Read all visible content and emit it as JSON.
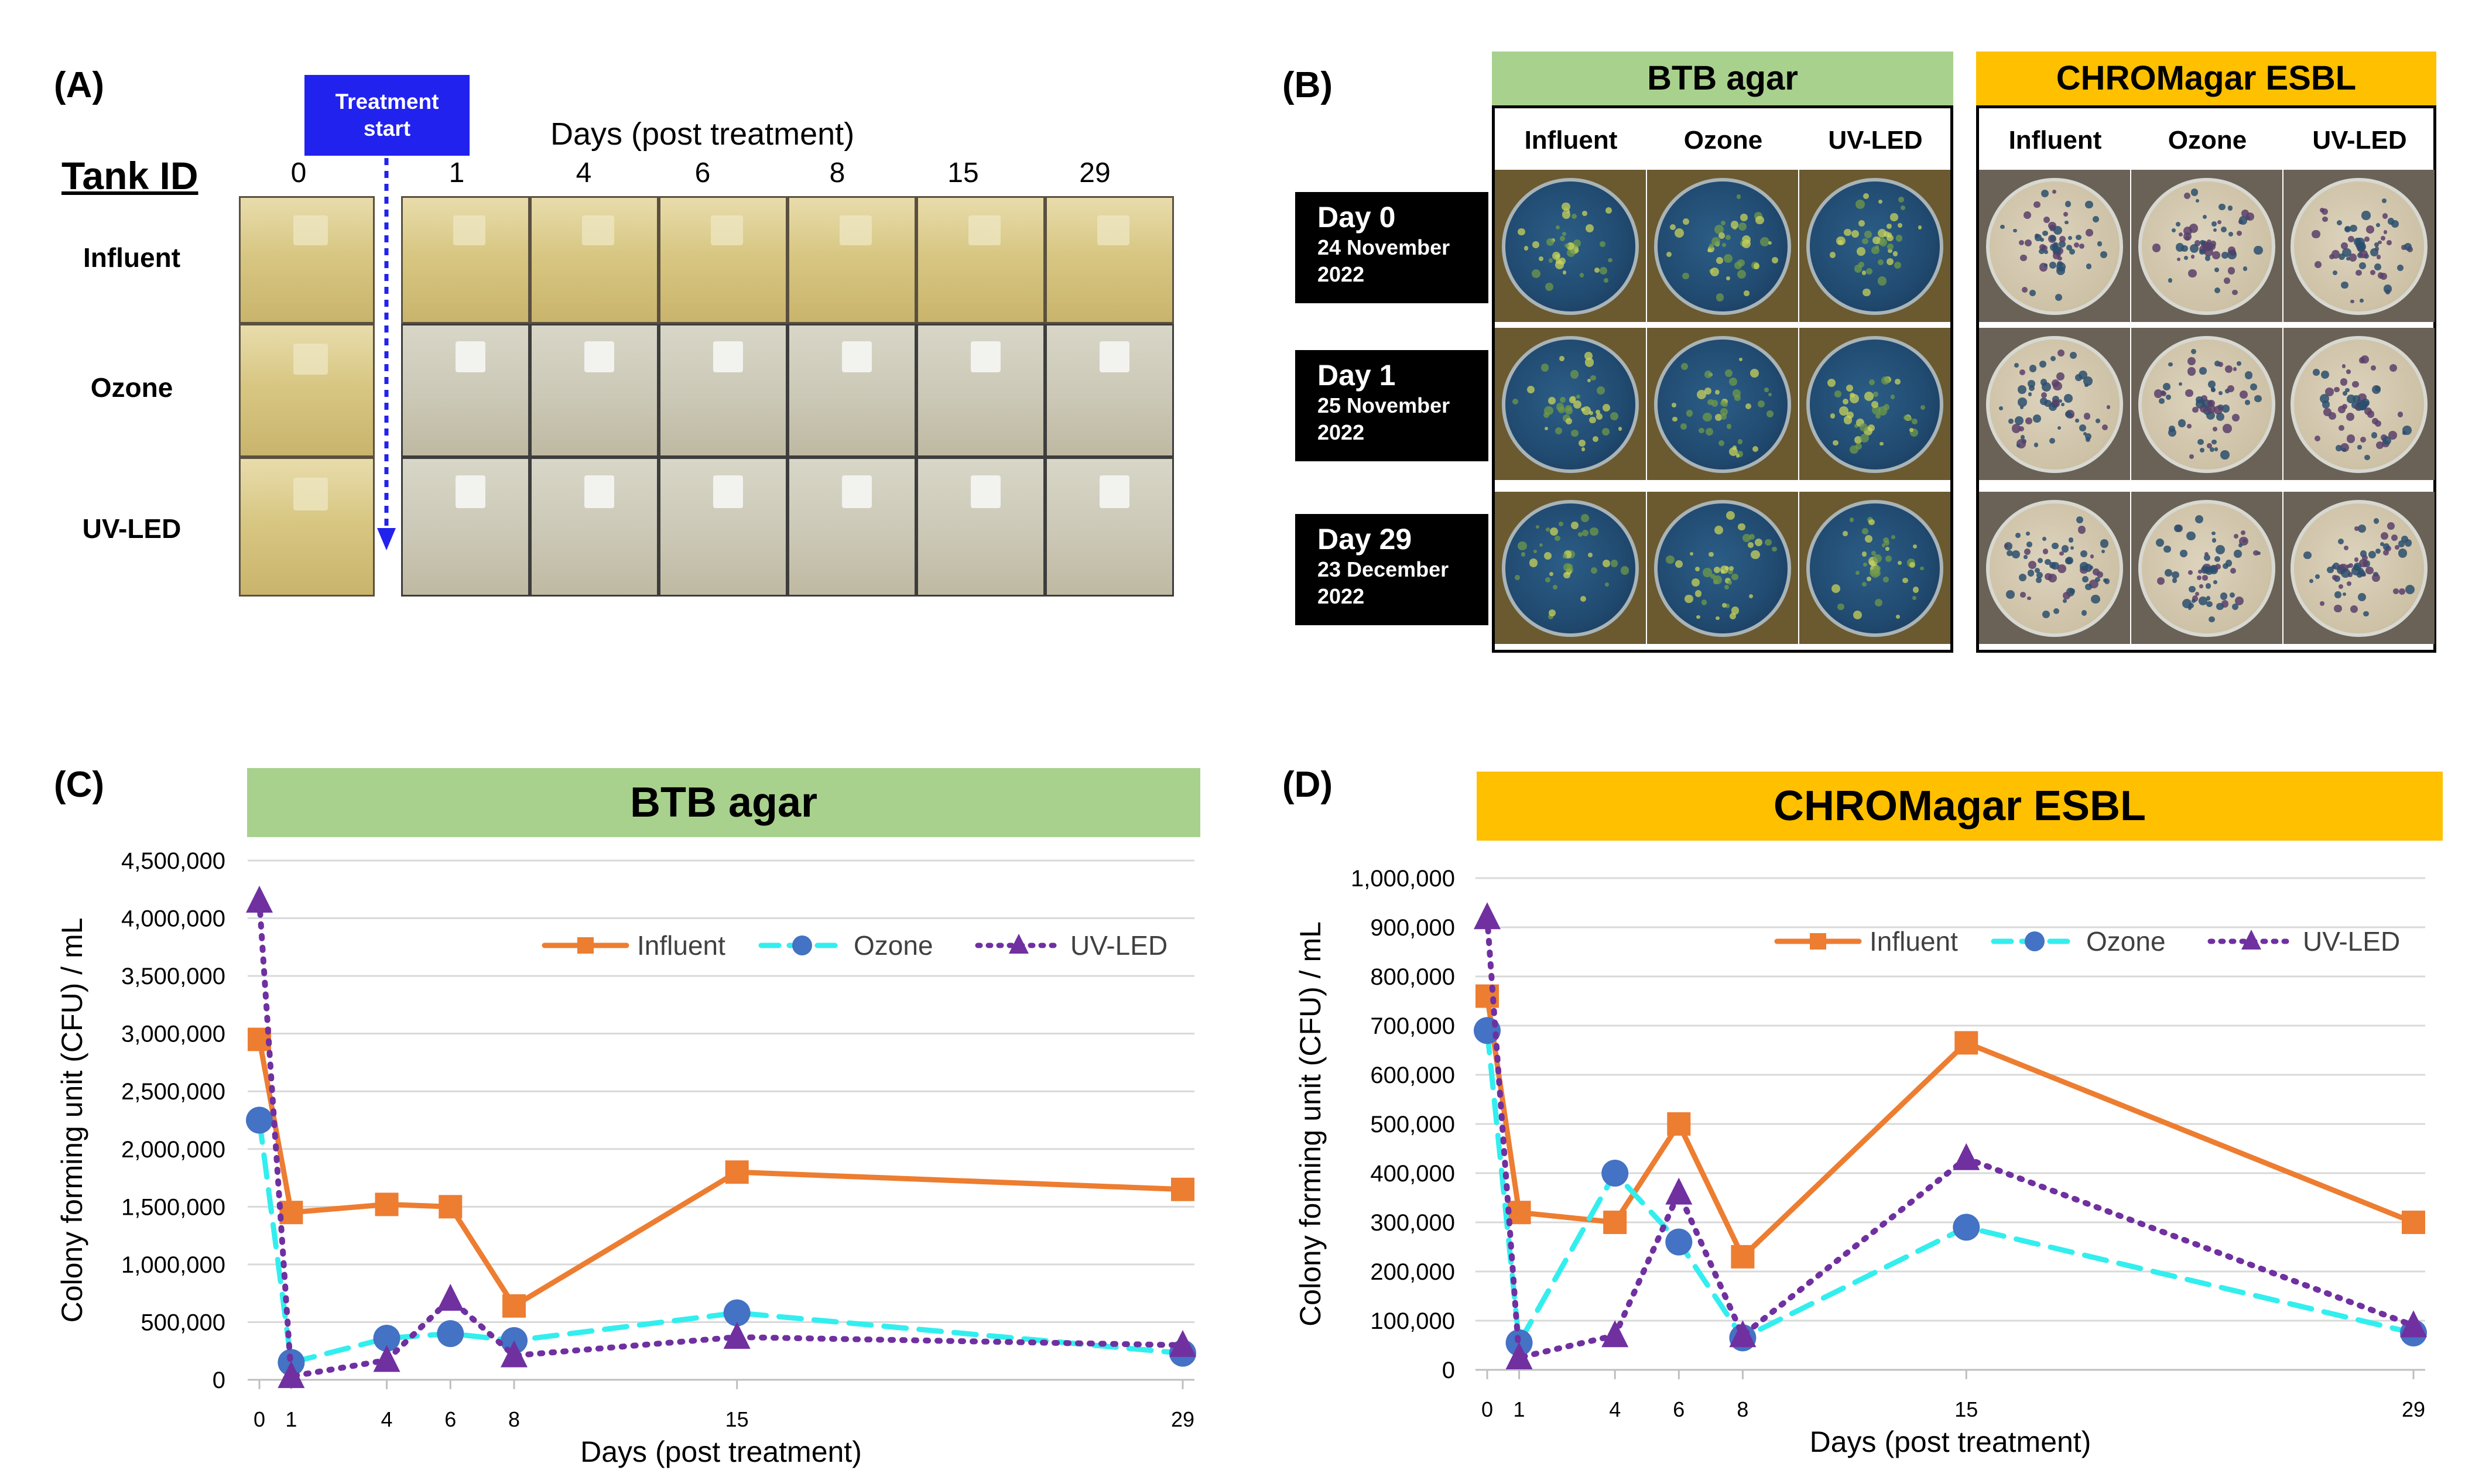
{
  "panel_a": {
    "label": "(A)",
    "tank_id_label": "Tank ID",
    "treatment_line1": "Treatment",
    "treatment_line2": "start",
    "days_title": "Days (post treatment)",
    "days": [
      "0",
      "1",
      "4",
      "6",
      "8",
      "15",
      "29"
    ],
    "rows": [
      "Influent",
      "Ozone",
      "UV-LED"
    ]
  },
  "panel_b": {
    "label": "(B)",
    "btb_title": "BTB agar",
    "chrom_title": "CHROMagar ESBL",
    "columns": [
      "Influent",
      "Ozone",
      "UV-LED"
    ],
    "rows": [
      {
        "day": "Day 0",
        "date1": "24 November",
        "date2": "2022"
      },
      {
        "day": "Day 1",
        "date1": "25 November",
        "date2": "2022"
      },
      {
        "day": "Day 29",
        "date1": "23 December",
        "date2": "2022"
      }
    ],
    "colors": {
      "btb_header": "#a9d18e",
      "chrom_header": "#ffc000"
    }
  },
  "chart_data": [
    {
      "panel_label": "(C)",
      "type": "line",
      "title": "BTB agar",
      "xlabel": "Days (post treatment)",
      "ylabel": "Colony forming unit (CFU) / mL",
      "x": [
        0,
        1,
        4,
        6,
        8,
        15,
        29
      ],
      "x_ticks": [
        "0",
        "1",
        "4",
        "6",
        "8",
        "15",
        "29"
      ],
      "ylim": [
        0,
        4500000
      ],
      "y_ticks": [
        "0",
        "500,000",
        "1,000,000",
        "1,500,000",
        "2,000,000",
        "2,500,000",
        "3,000,000",
        "3,500,000",
        "4,000,000",
        "4,500,000"
      ],
      "grid": true,
      "legend": "top-right",
      "banner_color": "#a9d18e",
      "series": [
        {
          "name": "Influent",
          "values": [
            2950000,
            1450000,
            1520000,
            1500000,
            640000,
            1800000,
            1650000
          ],
          "color": "#ed7d31",
          "marker": "square",
          "dash": ""
        },
        {
          "name": "Ozone",
          "values": [
            2250000,
            150000,
            360000,
            400000,
            340000,
            580000,
            230000
          ],
          "color": "#33eeee",
          "marker": "circle",
          "dash": "38 22"
        },
        {
          "name": "UV-LED",
          "values": [
            4150000,
            30000,
            170000,
            700000,
            210000,
            370000,
            300000
          ],
          "color": "#7030a0",
          "marker": "triangle",
          "dash": "4 16"
        }
      ]
    },
    {
      "panel_label": "(D)",
      "type": "line",
      "title": "CHROMagar ESBL",
      "xlabel": "Days (post treatment)",
      "ylabel": "Colony forming unit (CFU) / mL",
      "x": [
        0,
        1,
        4,
        6,
        8,
        15,
        29
      ],
      "x_ticks": [
        "0",
        "1",
        "4",
        "6",
        "8",
        "15",
        "29"
      ],
      "ylim": [
        0,
        1000000
      ],
      "y_ticks": [
        "0",
        "100,000",
        "200,000",
        "300,000",
        "400,000",
        "500,000",
        "600,000",
        "700,000",
        "800,000",
        "900,000",
        "1,000,000"
      ],
      "grid": true,
      "legend": "top-right",
      "banner_color": "#ffc000",
      "series": [
        {
          "name": "Influent",
          "values": [
            760000,
            320000,
            300000,
            500000,
            230000,
            665000,
            300000
          ],
          "color": "#ed7d31",
          "marker": "square",
          "dash": ""
        },
        {
          "name": "Ozone",
          "values": [
            690000,
            55000,
            400000,
            260000,
            65000,
            290000,
            75000
          ],
          "color": "#33eeee",
          "marker": "circle",
          "dash": "38 22"
        },
        {
          "name": "UV-LED",
          "values": [
            920000,
            25000,
            70000,
            360000,
            70000,
            430000,
            90000
          ],
          "color": "#7030a0",
          "marker": "triangle",
          "dash": "4 16"
        }
      ]
    }
  ]
}
